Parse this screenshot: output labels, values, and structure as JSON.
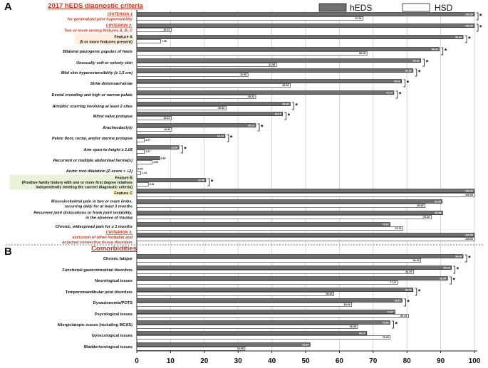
{
  "chart_data": {
    "type": "bar",
    "orientation": "horizontal",
    "xlim": [
      0,
      100
    ],
    "xticks": [
      "0",
      "10",
      "20",
      "30",
      "40",
      "50",
      "60",
      "70",
      "80",
      "90",
      "100"
    ],
    "legend": {
      "placement": "top-right",
      "entries": [
        "hEDS",
        "HSD"
      ]
    },
    "series_colors": {
      "hEDS": "#707070",
      "HSD": "#ffffff"
    },
    "significance_marker": "*",
    "panels": [
      {
        "letter": "A",
        "title": "2017 hEDS diagnostic criteria",
        "rows": [
          {
            "label": "CRITERION 1\nfor generalized joint hypermobility",
            "style": "criterion",
            "heds": 100.0,
            "hsd": 67.01,
            "heds_label": "100.00",
            "hsd_label": "67.01",
            "sig": true
          },
          {
            "label": "CRITERION 2:\nTwo or more among features A, B, C",
            "style": "criterion",
            "heds": 100.0,
            "hsd": 10.22,
            "heds_label": "100.00",
            "hsd_label": "10.22",
            "sig": true
          },
          {
            "label": "Feature A\n(5 or more features present)",
            "style": "featureA",
            "heds": 96.64,
            "hsd": 7.05,
            "heds_label": "96.64",
            "hsd_label": "7.05",
            "sig": true
          },
          {
            "label": "Bilateral piezogenic papules of heels",
            "style": "item",
            "heds": 89.6,
            "hsd": 68.18,
            "heds_label": "89.60",
            "hsd_label": "68.18",
            "sig": true
          },
          {
            "label": "Unusually soft or velvety skin",
            "style": "item",
            "heds": 84.09,
            "hsd": 41.38,
            "heds_label": "84.09",
            "hsd_label": "41.38",
            "sig": true
          },
          {
            "label": "Mild skin hyperextensibility (≥ 1,5 cm)",
            "style": "item",
            "heds": 81.82,
            "hsd": 32.95,
            "heds_label": "81.82",
            "hsd_label": "32.95",
            "sig": true
          },
          {
            "label": "Striæ distensæ/rubrae",
            "style": "item",
            "heds": 78.41,
            "hsd": 45.45,
            "heds_label": "78.41",
            "hsd_label": "45.45",
            "sig": true
          },
          {
            "label": "Dental crowding and high or narrow palate",
            "style": "item",
            "heds": 76.14,
            "hsd": 35.23,
            "heds_label": "76.14",
            "hsd_label": "35.23",
            "sig": true
          },
          {
            "label": "Atrophic scarring involving at least 2 sites",
            "style": "item",
            "heds": 45.45,
            "hsd": 26.43,
            "heds_label": "45.45",
            "hsd_label": "26.43",
            "sig": true
          },
          {
            "label": "Mitral valve prolapse",
            "style": "item",
            "heds": 43.18,
            "hsd": 10.22,
            "heds_label": "43.18",
            "hsd_label": "10.22",
            "sig": true
          },
          {
            "label": "Arachnodactyly",
            "style": "item",
            "heds": 35.23,
            "hsd": 10.33,
            "heds_label": "35.23",
            "hsd_label": "10.33",
            "sig": true
          },
          {
            "label": "Pelvic floor, rectal, and/or uterine prolapse",
            "style": "item",
            "heds": 26.14,
            "hsd": 2.27,
            "heds_label": "26.14",
            "hsd_label": "2.27",
            "sig": true
          },
          {
            "label": "Arm span-to-height ≥ 1.05",
            "style": "item",
            "heds": 12.5,
            "hsd": 2.27,
            "heds_label": "12.50",
            "hsd_label": "2.27",
            "sig": true
          },
          {
            "label": "Recurrent or multiple abdominal hernia(s)",
            "style": "item",
            "heds": 6.82,
            "hsd": 4.55,
            "heds_label": "6.82",
            "hsd_label": "4.55",
            "sig": false
          },
          {
            "label": "Aortic root dilatation (Z-score > +2)",
            "style": "item",
            "heds": 0.0,
            "hsd": 1.14,
            "heds_label": "0.00",
            "hsd_label": "1.14",
            "sig": false
          },
          {
            "label": "Feature B\n(Positive family history with one or more first degree relatives\nindependently meeting the current diagnostic criteria)",
            "style": "featureB",
            "heds": 20.45,
            "hsd": 3.41,
            "heds_label": "20.45",
            "hsd_label": "3.41",
            "sig": true
          },
          {
            "label": "Feature C",
            "style": "featureC",
            "heds": 100.0,
            "hsd": 100.0,
            "heds_label": "100.00",
            "hsd_label": "100.00",
            "sig": false
          },
          {
            "label": "Musculoskeletal pain in two or more limbs,\nrecurring daily for at least 3 months",
            "style": "item",
            "heds": 90.45,
            "hsd": 85.35,
            "heds_label": "90.45",
            "hsd_label": "85.35",
            "sig": false
          },
          {
            "label": "Recurrent joint dislocations or frank joint instability,\nin the absence of trauma",
            "style": "item",
            "heds": 90.59,
            "hsd": 87.2,
            "heds_label": "90.59",
            "hsd_label": "87.20",
            "sig": false
          },
          {
            "label": "Chronic, widespread pain for ≥ 3 months",
            "style": "item",
            "heds": 75.0,
            "hsd": 78.79,
            "heds_label": "75.00",
            "hsd_label": "78.79",
            "sig": false
          },
          {
            "label": "CRITERION 3:\nexclusion of other heritable and\nacquired connective tissue disorders",
            "style": "criterion",
            "heds": 100.0,
            "hsd": 100.0,
            "heds_label": "100.00",
            "hsd_label": "100.00",
            "sig": false
          }
        ]
      },
      {
        "letter": "B",
        "title": "Comorbidities",
        "rows": [
          {
            "label": "Chronic fatigue",
            "style": "plain",
            "heds": 96.64,
            "hsd": 84.09,
            "heds_label": "96.64",
            "hsd_label": "84.09",
            "sig": true
          },
          {
            "label": "Functional gastrointestinal disorders",
            "style": "plain",
            "heds": 93.18,
            "hsd": 81.97,
            "heds_label": "93.18",
            "hsd_label": "81.97",
            "sig": true
          },
          {
            "label": "Neurological issues",
            "style": "plain",
            "heds": 92.05,
            "hsd": 77.27,
            "heds_label": "92.05",
            "hsd_label": "77.27",
            "sig": true
          },
          {
            "label": "Temporomandibular joint disorders",
            "style": "plain",
            "heds": 81.82,
            "hsd": 58.33,
            "heds_label": "81.82",
            "hsd_label": "58.33",
            "sig": true
          },
          {
            "label": "Dysautonomia/POTS",
            "style": "plain",
            "heds": 78.57,
            "hsd": 63.64,
            "heds_label": "78.57",
            "hsd_label": "63.64",
            "sig": true
          },
          {
            "label": "Psycological issues",
            "style": "plain",
            "heds": 76.47,
            "hsd": 80.44,
            "heds_label": "76.47",
            "hsd_label": "80.44",
            "sig": false
          },
          {
            "label": "Allergic/atopic issues (including MCAS)",
            "style": "plain",
            "heds": 75.0,
            "hsd": 65.38,
            "heds_label": "75.00",
            "hsd_label": "65.38",
            "sig": true
          },
          {
            "label": "Gynecological issues",
            "style": "plain",
            "heds": 68.12,
            "hsd": 75.03,
            "heds_label": "68.12",
            "hsd_label": "75.03",
            "sig": false
          },
          {
            "label": "Bladder/urological issues",
            "style": "plain",
            "heds": 51.34,
            "hsd": 32.05,
            "heds_label": "51.34",
            "hsd_label": "32.05",
            "sig": false
          }
        ]
      }
    ]
  }
}
